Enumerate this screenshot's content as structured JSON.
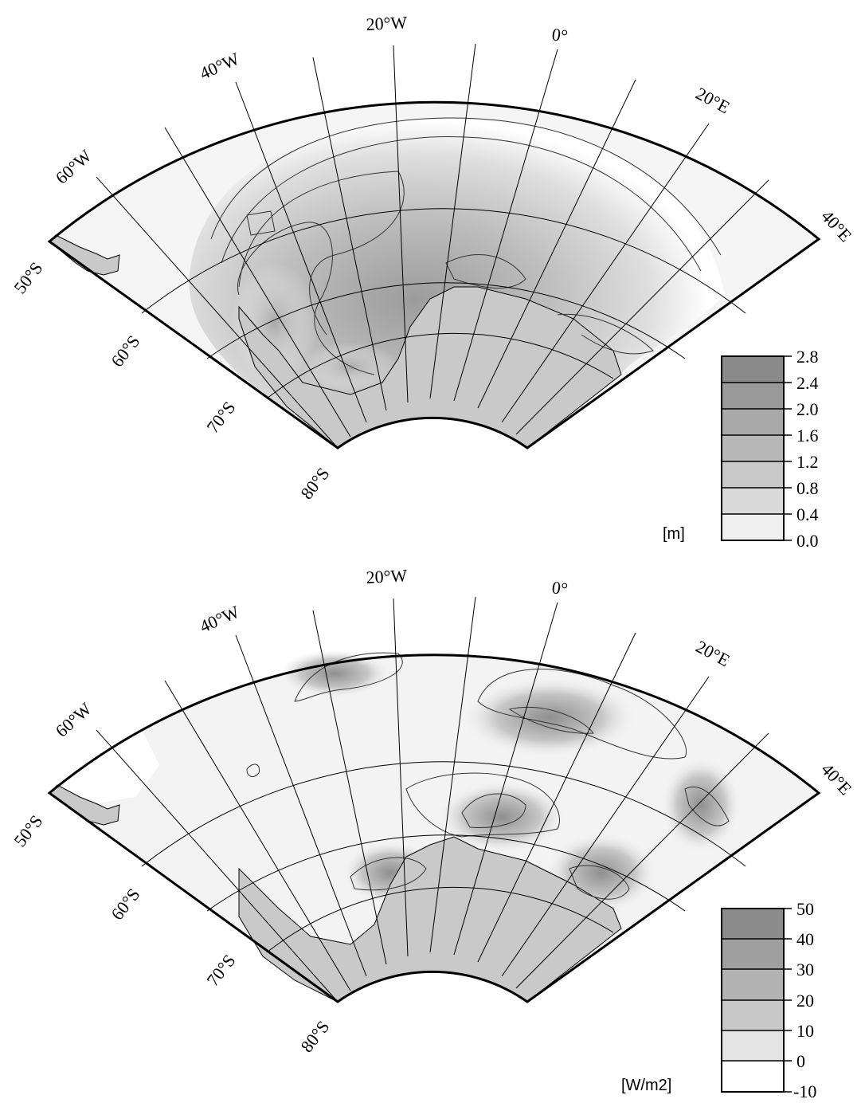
{
  "maps": [
    {
      "id": "top",
      "lon_labels": [
        "60°W",
        "40°W",
        "20°W",
        "0°",
        "20°E",
        "40°E"
      ],
      "lat_labels": [
        "50°S",
        "60°S",
        "70°S",
        "80°S"
      ],
      "colorbar": {
        "unit": "[m]",
        "ticks": [
          "2.8",
          "2.4",
          "2.0",
          "1.6",
          "1.2",
          "0.8",
          "0.4",
          "0.0"
        ],
        "colors": [
          "#8a8a8a",
          "#9a9a9a",
          "#a9a9a9",
          "#b8b8b8",
          "#c9c9c9",
          "#dadada",
          "#ececec",
          "#ffffff"
        ]
      }
    },
    {
      "id": "bottom",
      "lon_labels": [
        "60°W",
        "40°W",
        "20°W",
        "0°",
        "20°E",
        "40°E"
      ],
      "lat_labels": [
        "50°S",
        "60°S",
        "70°S",
        "80°S"
      ],
      "colorbar": {
        "unit": "[W/m2]",
        "ticks": [
          "50",
          "40",
          "30",
          "20",
          "10",
          "0",
          "-10"
        ],
        "colors": [
          "#8c8c8c",
          "#9f9f9f",
          "#b3b3b3",
          "#c8c8c8",
          "#e0e0e0",
          "#ffffff"
        ]
      }
    }
  ],
  "colors": {
    "land": "#cfcfcf",
    "outline": "#000000",
    "background": "#ffffff"
  }
}
